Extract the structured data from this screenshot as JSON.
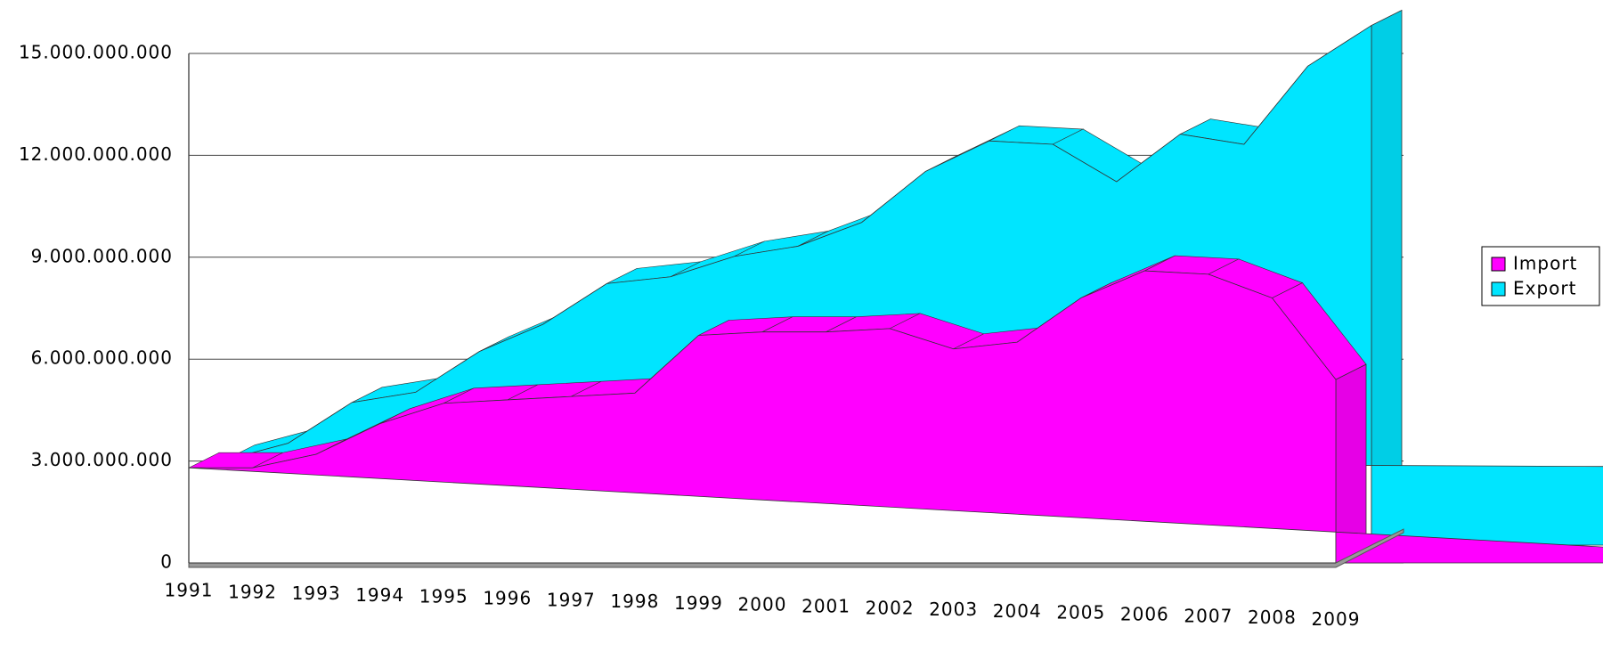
{
  "chart_data": {
    "type": "area3d",
    "categories": [
      "1991",
      "1992",
      "1993",
      "1994",
      "1995",
      "1996",
      "1997",
      "1998",
      "1999",
      "2000",
      "2001",
      "2002",
      "2003",
      "2004",
      "2005",
      "2006",
      "2007",
      "2008",
      "2009"
    ],
    "series": [
      {
        "name": "Import",
        "color": "#ff00ff",
        "values": [
          2800000000,
          2800000000,
          3200000000,
          4100000000,
          4700000000,
          4800000000,
          4900000000,
          5000000000,
          6700000000,
          6800000000,
          6800000000,
          6900000000,
          6300000000,
          6500000000,
          7800000000,
          8600000000,
          8500000000,
          7800000000,
          5400000000
        ]
      },
      {
        "name": "Export",
        "color": "#00e5ff",
        "values": [
          2500000000,
          3000000000,
          4200000000,
          4500000000,
          5700000000,
          6500000000,
          7700000000,
          7900000000,
          8500000000,
          8800000000,
          9500000000,
          11000000000,
          11900000000,
          11800000000,
          10700000000,
          12100000000,
          11800000000,
          14100000000,
          15300000000
        ]
      }
    ],
    "ylim": [
      0,
      15000000000
    ],
    "yticks": [
      0,
      {
        "value": 3000000000,
        "label": "3.000.000.000"
      },
      {
        "value": 6000000000,
        "label": "6.000.000.000"
      },
      {
        "value": 9000000000,
        "label": "9.000.000.000"
      },
      {
        "value": 12000000000,
        "label": "12.000.000.000"
      },
      {
        "value": 15000000000,
        "label": "15.000.000.000"
      }
    ],
    "grid": true,
    "legend": "right"
  }
}
